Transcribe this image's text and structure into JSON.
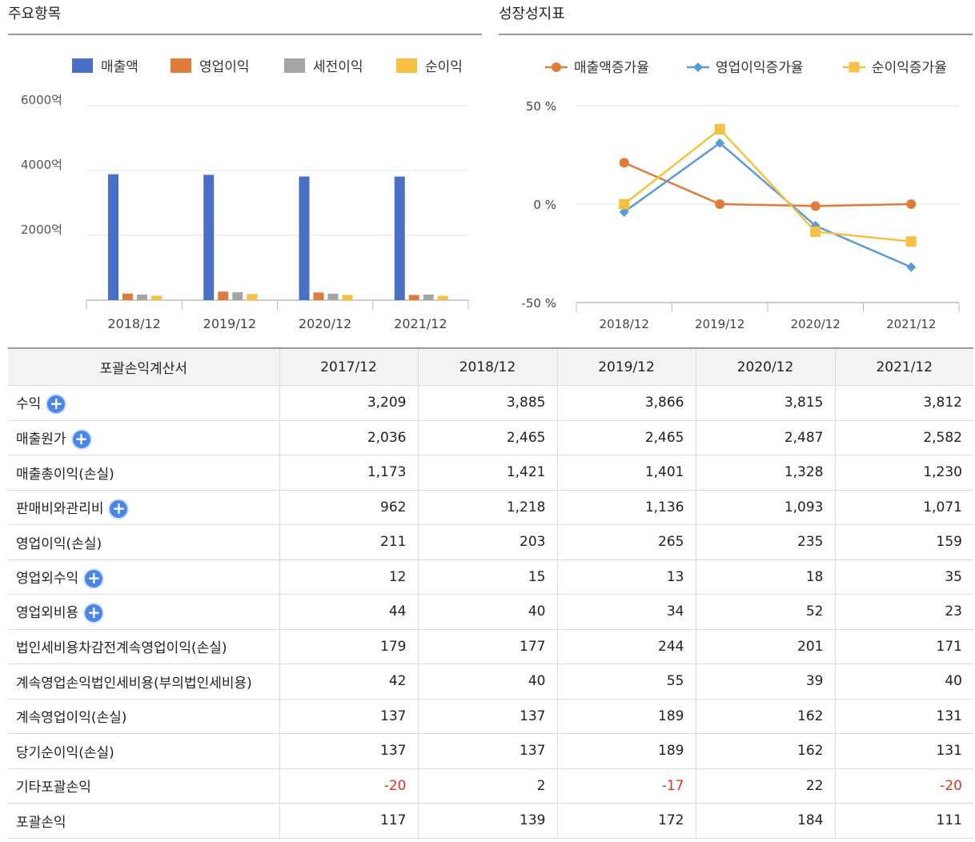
{
  "left_panel": {
    "title": "주요항목"
  },
  "right_panel": {
    "title": "성장성지표"
  },
  "chart_data": [
    {
      "type": "bar",
      "categories": [
        "2018/12",
        "2019/12",
        "2020/12",
        "2021/12"
      ],
      "series": [
        {
          "name": "매출액",
          "color": "#4a6fc6",
          "values": [
            3885,
            3866,
            3815,
            3812
          ]
        },
        {
          "name": "영업이익",
          "color": "#e07b39",
          "values": [
            203,
            265,
            235,
            159
          ]
        },
        {
          "name": "세전이익",
          "color": "#a5a5a5",
          "values": [
            177,
            244,
            201,
            171
          ]
        },
        {
          "name": "순이익",
          "color": "#f6c142",
          "values": [
            137,
            189,
            162,
            131
          ]
        }
      ],
      "yticks": [
        2000,
        4000,
        6000
      ],
      "ytick_labels": [
        "2000억",
        "4000억",
        "6000억"
      ],
      "ylim": [
        0,
        6000
      ],
      "legend": "top",
      "grid": true
    },
    {
      "type": "line",
      "categories": [
        "2018/12",
        "2019/12",
        "2020/12",
        "2021/12"
      ],
      "series": [
        {
          "name": "매출액증가율",
          "color": "#e07b39",
          "marker": "circle",
          "values": [
            21,
            0,
            -1,
            0
          ]
        },
        {
          "name": "영업이익증가율",
          "color": "#5b9bd5",
          "marker": "diamond",
          "values": [
            -4,
            31,
            -11,
            -32
          ]
        },
        {
          "name": "순이익증가율",
          "color": "#f6c142",
          "marker": "square",
          "values": [
            0,
            38,
            -14,
            -19
          ]
        }
      ],
      "yticks": [
        -50,
        0,
        50
      ],
      "ytick_labels": [
        "-50 %",
        "0 %",
        "50 %"
      ],
      "ylim": [
        -50,
        50
      ],
      "legend": "top",
      "grid": true
    }
  ],
  "table": {
    "headers": [
      "포괄손익계산서",
      "2017/12",
      "2018/12",
      "2019/12",
      "2020/12",
      "2021/12"
    ],
    "plus_symbol": "+",
    "rows": [
      {
        "label": "수익",
        "expand": true,
        "values": [
          "3,209",
          "3,885",
          "3,866",
          "3,815",
          "3,812"
        ]
      },
      {
        "label": "매출원가",
        "expand": true,
        "values": [
          "2,036",
          "2,465",
          "2,465",
          "2,487",
          "2,582"
        ]
      },
      {
        "label": "매출총이익(손실)",
        "expand": false,
        "values": [
          "1,173",
          "1,421",
          "1,401",
          "1,328",
          "1,230"
        ]
      },
      {
        "label": "판매비와관리비",
        "expand": true,
        "values": [
          "962",
          "1,218",
          "1,136",
          "1,093",
          "1,071"
        ]
      },
      {
        "label": "영업이익(손실)",
        "expand": false,
        "values": [
          "211",
          "203",
          "265",
          "235",
          "159"
        ]
      },
      {
        "label": "영업외수익",
        "expand": true,
        "values": [
          "12",
          "15",
          "13",
          "18",
          "35"
        ]
      },
      {
        "label": "영업외비용",
        "expand": true,
        "values": [
          "44",
          "40",
          "34",
          "52",
          "23"
        ]
      },
      {
        "label": "법인세비용차감전계속영업이익(손실)",
        "expand": false,
        "values": [
          "179",
          "177",
          "244",
          "201",
          "171"
        ]
      },
      {
        "label": "계속영업손익법인세비용(부의법인세비용)",
        "expand": false,
        "values": [
          "42",
          "40",
          "55",
          "39",
          "40"
        ]
      },
      {
        "label": "계속영업이익(손실)",
        "expand": false,
        "values": [
          "137",
          "137",
          "189",
          "162",
          "131"
        ]
      },
      {
        "label": "당기순이익(손실)",
        "expand": false,
        "values": [
          "137",
          "137",
          "189",
          "162",
          "131"
        ]
      },
      {
        "label": "기타포괄손익",
        "expand": false,
        "values": [
          "-20",
          "2",
          "-17",
          "22",
          "-20"
        ]
      },
      {
        "label": "포괄손익",
        "expand": false,
        "values": [
          "117",
          "139",
          "172",
          "184",
          "111"
        ]
      }
    ]
  }
}
